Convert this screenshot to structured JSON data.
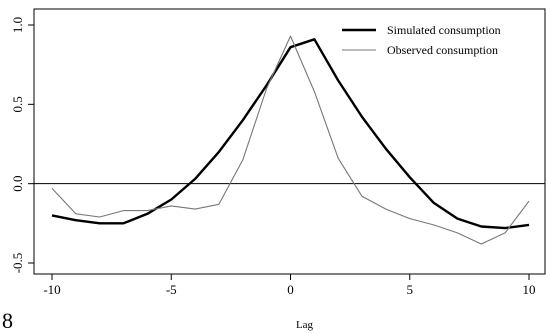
{
  "page_number": "8",
  "chart_data": {
    "type": "line",
    "title": "",
    "xlabel": "Lag",
    "ylabel": "",
    "xlim": [
      -10,
      10
    ],
    "ylim": [
      -0.5,
      1.0
    ],
    "xticks": [
      -10,
      -5,
      0,
      5,
      10
    ],
    "yticks": [
      -0.5,
      0.0,
      0.5,
      1.0
    ],
    "xtick_labels": [
      "-10",
      "-5",
      "0",
      "5",
      "10"
    ],
    "ytick_labels": [
      "-0.5",
      "0.0",
      "0.5",
      "1.0"
    ],
    "reference_line_y": 0.0,
    "grid": false,
    "legend_position": "top-right",
    "x": [
      -10,
      -9,
      -8,
      -7,
      -6,
      -5,
      -4,
      -3,
      -2,
      -1,
      0,
      1,
      2,
      3,
      4,
      5,
      6,
      7,
      8,
      9,
      10
    ],
    "series": [
      {
        "name": "Simulated consumption",
        "style": "thick",
        "color": "#000000",
        "values": [
          -0.2,
          -0.23,
          -0.25,
          -0.25,
          -0.19,
          -0.1,
          0.03,
          0.2,
          0.4,
          0.62,
          0.86,
          0.91,
          0.65,
          0.42,
          0.22,
          0.04,
          -0.12,
          -0.22,
          -0.27,
          -0.28,
          -0.26
        ]
      },
      {
        "name": "Observed consumption",
        "style": "thin",
        "color": "#777777",
        "values": [
          -0.03,
          -0.19,
          -0.21,
          -0.17,
          -0.17,
          -0.14,
          -0.16,
          -0.13,
          0.15,
          0.6,
          0.93,
          0.58,
          0.16,
          -0.08,
          -0.16,
          -0.22,
          -0.26,
          -0.31,
          -0.38,
          -0.31,
          -0.11
        ]
      }
    ]
  }
}
